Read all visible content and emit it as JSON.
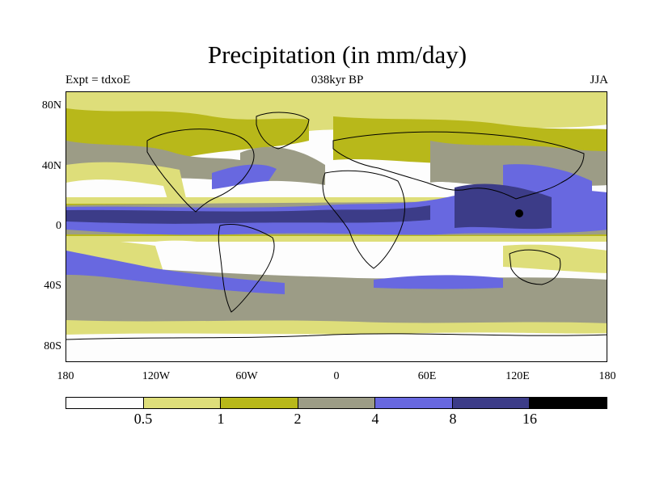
{
  "title": "Precipitation (in mm/day)",
  "subtitle_left": "Expt = tdxoE",
  "subtitle_center": "038kyr BP",
  "subtitle_right": "JJA",
  "y_ticks": [
    "80N",
    "40N",
    "0",
    "40S",
    "80S"
  ],
  "x_ticks": [
    "180",
    "120W",
    "60W",
    "0",
    "60E",
    "120E",
    "180"
  ],
  "colorbar": {
    "colors": [
      "#fdfdfd",
      "#dede7a",
      "#b8b81a",
      "#9c9c86",
      "#6868e0",
      "#3c3c88",
      "#000000"
    ],
    "labels": [
      "0.5",
      "1",
      "2",
      "4",
      "8",
      "16"
    ]
  }
}
